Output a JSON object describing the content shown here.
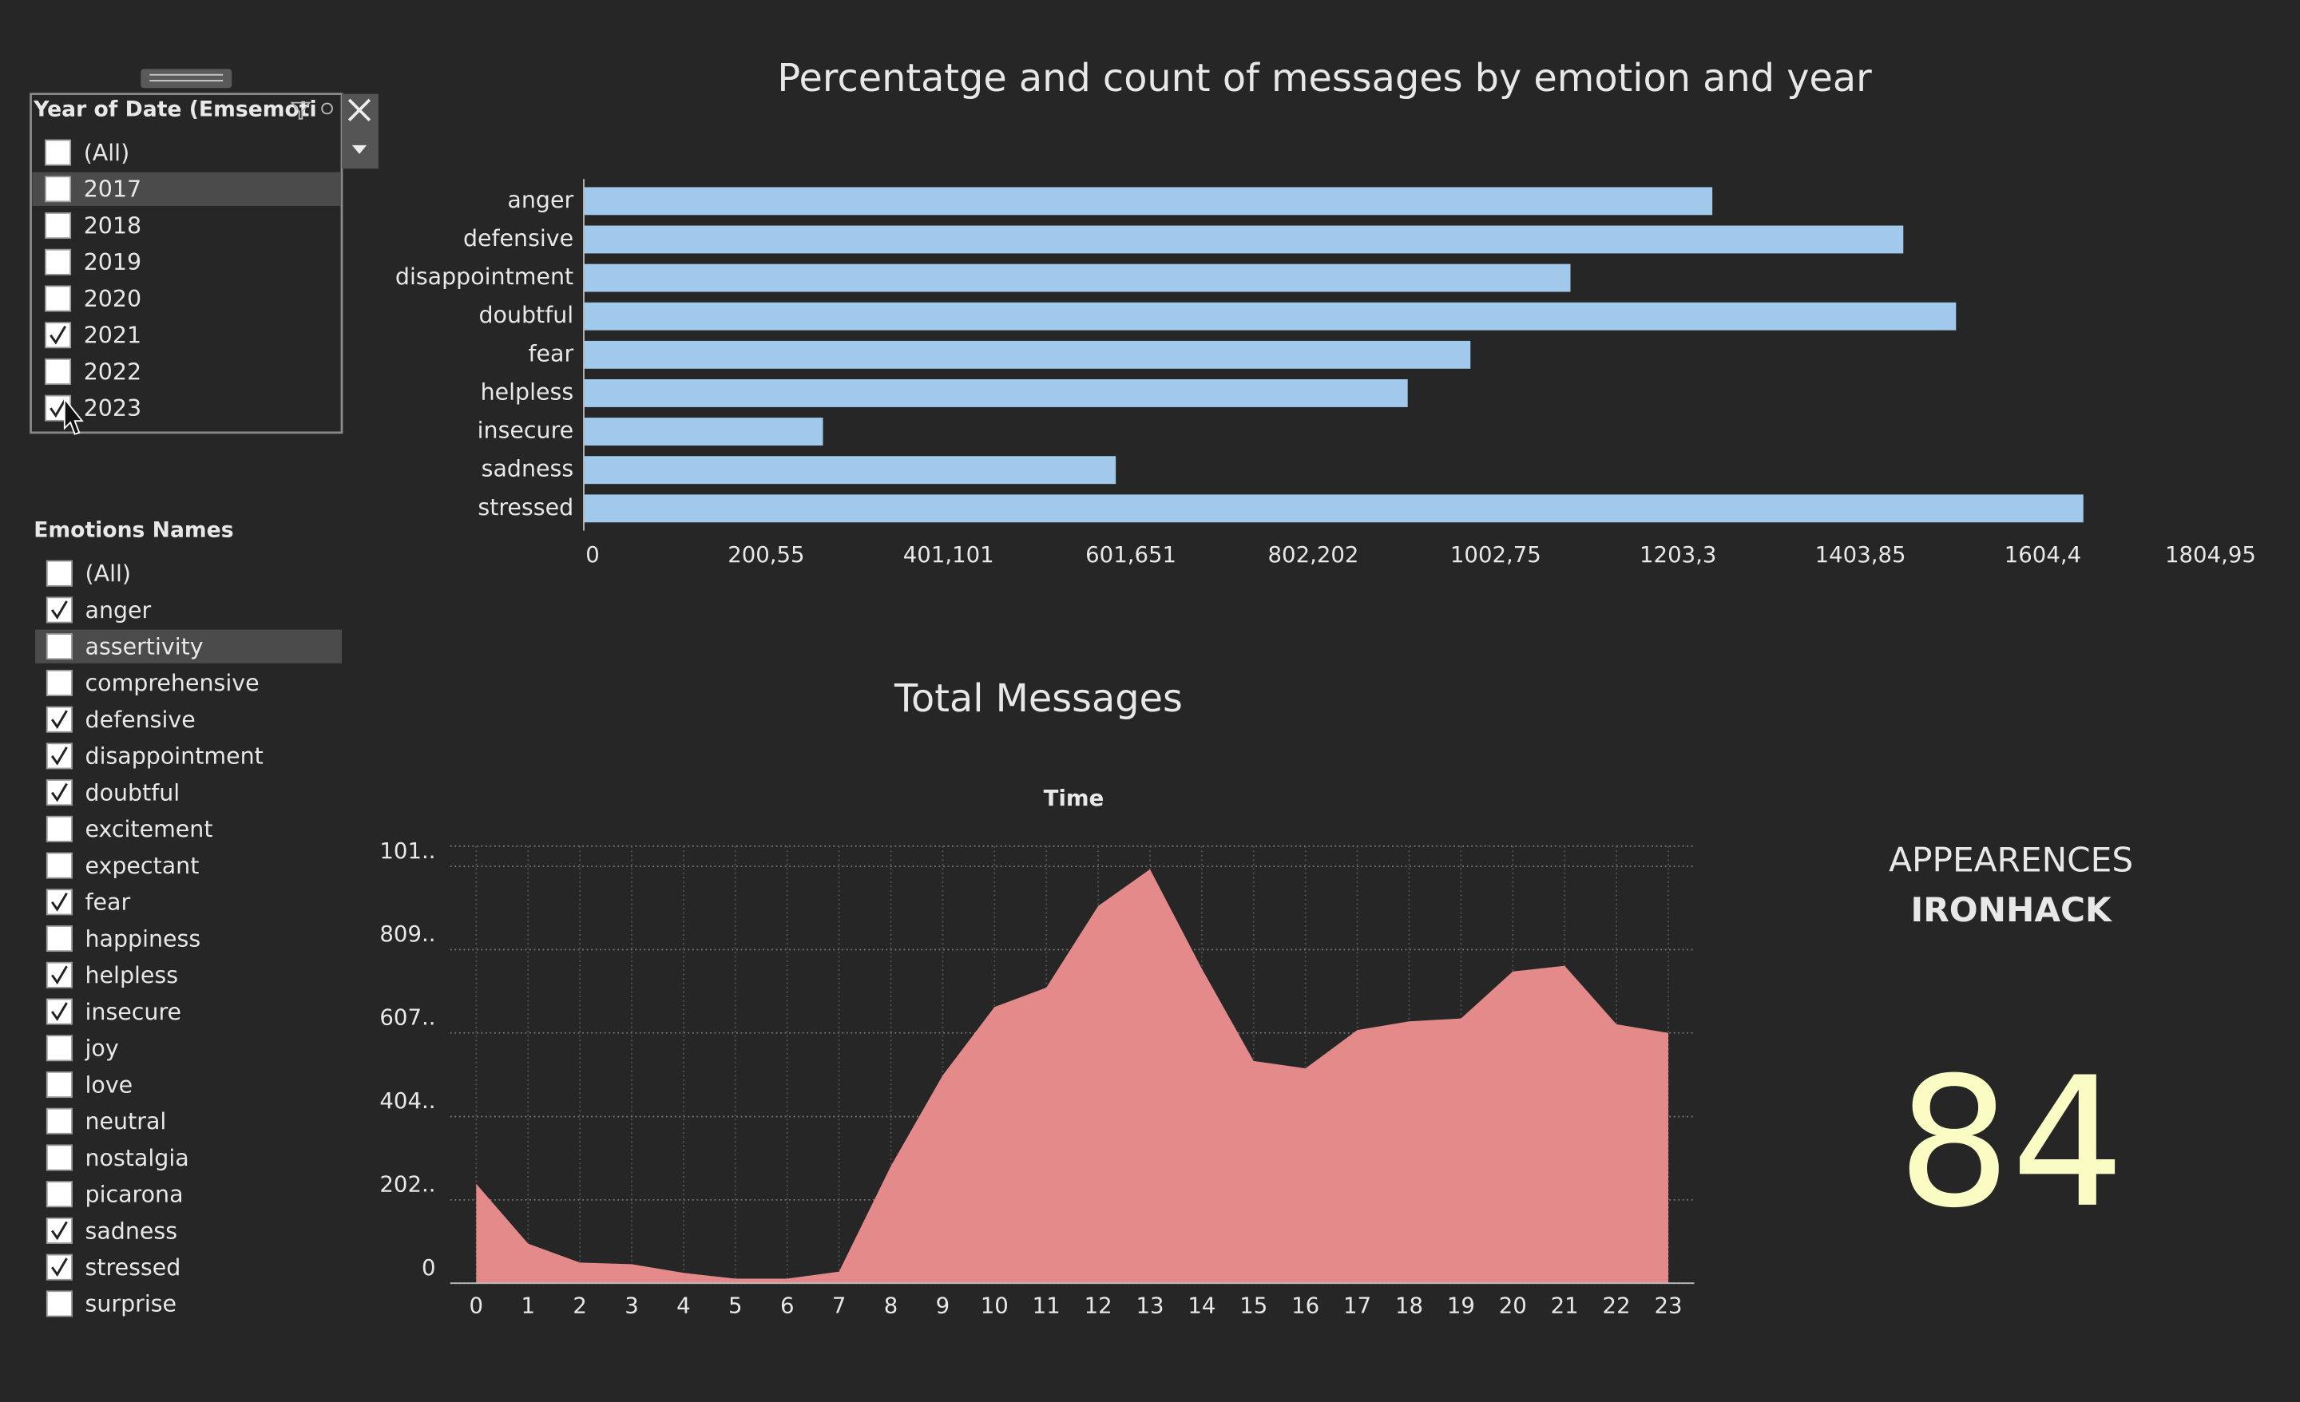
{
  "filters": [
    {
      "title": "Year of Date (Emsemoti",
      "items": [
        {
          "label": "(All)",
          "checked": false
        },
        {
          "label": "2017",
          "checked": false,
          "hovered": true
        },
        {
          "label": "2018",
          "checked": false
        },
        {
          "label": "2019",
          "checked": false
        },
        {
          "label": "2020",
          "checked": false
        },
        {
          "label": "2021",
          "checked": true
        },
        {
          "label": "2022",
          "checked": false
        },
        {
          "label": "2023",
          "checked": true
        }
      ]
    },
    {
      "title": "Emotions Names",
      "items": [
        {
          "label": "(All)",
          "checked": false
        },
        {
          "label": "anger",
          "checked": true
        },
        {
          "label": "assertivity",
          "checked": false,
          "hovered": true
        },
        {
          "label": "comprehensive",
          "checked": false
        },
        {
          "label": "defensive",
          "checked": true
        },
        {
          "label": "disappointment",
          "checked": true
        },
        {
          "label": "doubtful",
          "checked": true
        },
        {
          "label": "excitement",
          "checked": false
        },
        {
          "label": "expectant",
          "checked": false
        },
        {
          "label": "fear",
          "checked": true
        },
        {
          "label": "happiness",
          "checked": false
        },
        {
          "label": "helpless",
          "checked": true
        },
        {
          "label": "insecure",
          "checked": true
        },
        {
          "label": "joy",
          "checked": false
        },
        {
          "label": "love",
          "checked": false
        },
        {
          "label": "neutral",
          "checked": false
        },
        {
          "label": "nostalgia",
          "checked": false
        },
        {
          "label": "picarona",
          "checked": false
        },
        {
          "label": "sadness",
          "checked": true
        },
        {
          "label": "stressed",
          "checked": true
        },
        {
          "label": "surprise",
          "checked": false
        }
      ]
    }
  ],
  "chart_data": [
    {
      "type": "bar",
      "orientation": "horizontal",
      "title": "Percentatge and count of messages by emotion and year",
      "categories": [
        "anger",
        "defensive",
        "disappointment",
        "doubtful",
        "fear",
        "helpless",
        "insecure",
        "sadness",
        "stressed"
      ],
      "values": [
        1241,
        1451,
        1085,
        1509,
        975,
        906,
        263,
        585,
        1649
      ],
      "color": "#a0c9ec",
      "xlim": [
        0,
        1804.95
      ],
      "xticks": [
        0,
        {
          "value": 200.55,
          "label": "200,55"
        },
        {
          "value": 401.101,
          "label": "401,101"
        },
        {
          "value": 601.651,
          "label": "601,651"
        },
        {
          "value": 802.202,
          "label": "802,202"
        },
        {
          "value": 1002.75,
          "label": "1002,75"
        },
        {
          "value": 1203.3,
          "label": "1203,3"
        },
        {
          "value": 1403.85,
          "label": "1403,85"
        },
        {
          "value": 1604.4,
          "label": "1604,4"
        },
        {
          "value": 1804.95,
          "label": "1804,95"
        }
      ],
      "grid": false
    },
    {
      "type": "area",
      "title": "Total Messages",
      "x_label": "Time",
      "x": [
        0,
        1,
        2,
        3,
        4,
        5,
        6,
        7,
        8,
        9,
        10,
        11,
        12,
        13,
        14,
        15,
        16,
        17,
        18,
        19,
        20,
        21,
        22,
        23
      ],
      "values": [
        241,
        96,
        50,
        46,
        25,
        11,
        11,
        28,
        284,
        504,
        670,
        717,
        915,
        1004,
        763,
        539,
        521,
        614,
        635,
        642,
        756,
        770,
        628,
        607
      ],
      "color": "#e48a8a",
      "xlim": [
        -0.5,
        23.5
      ],
      "xticks": [
        0,
        1,
        2,
        3,
        4,
        5,
        6,
        7,
        8,
        9,
        10,
        11,
        12,
        13,
        14,
        15,
        16,
        17,
        18,
        19,
        20,
        21,
        22,
        23
      ],
      "ylim": [
        0,
        1060
      ],
      "yticks": [
        0,
        {
          "value": 202,
          "label": "202.."
        },
        {
          "value": 404,
          "label": "404.."
        },
        {
          "value": 607,
          "label": "607.."
        },
        {
          "value": 809,
          "label": "809.."
        },
        {
          "value": 1011,
          "label": "101.."
        }
      ],
      "grid": true
    }
  ],
  "kpi": {
    "title": "APPEARENCES",
    "subtitle": "IRONHACK",
    "value": 84
  }
}
